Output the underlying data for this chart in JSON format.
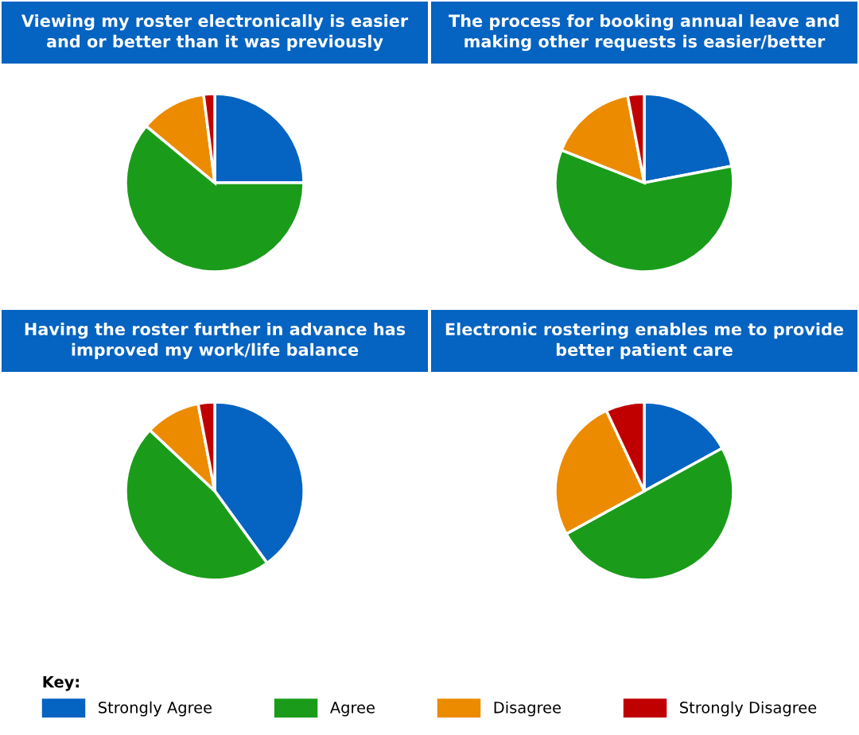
{
  "chart_data": [
    {
      "type": "pie",
      "title": "Viewing my roster electronically is easier\nand or better than it was previously",
      "categories": [
        "Strongly Agree",
        "Agree",
        "Disagree",
        "Strongly Disagree"
      ],
      "values": [
        25,
        61,
        12,
        2
      ],
      "colors": [
        "#0563c1",
        "#1a9c1a",
        "#ec8b00",
        "#c00000"
      ],
      "legend": "bottom",
      "legend_title": "Key:"
    },
    {
      "type": "pie",
      "title": "The process for booking annual leave and\nmaking other requests is easier/better",
      "categories": [
        null,
        null,
        null,
        null
      ],
      "values": [
        22,
        59,
        16,
        3
      ],
      "colors": [
        "#0563c1",
        "#1a9c1a",
        "#ec8b00",
        "#c00000"
      ]
    },
    {
      "type": "pie",
      "title": "Having the roster further in advance has\nimproved my work/life balance",
      "categories": [
        null,
        null,
        null,
        null
      ],
      "values": [
        40,
        47,
        10,
        3
      ],
      "colors": [
        "#0563c1",
        "#1a9c1a",
        "#ec8b00",
        "#c00000"
      ]
    },
    {
      "type": "pie",
      "title": "Electronic rostering enables me to provide\nbetter patient care",
      "categories": [
        null,
        null,
        null,
        null
      ],
      "values": [
        17,
        50,
        26,
        7
      ],
      "colors": [
        "#0563c1",
        "#1a9c1a",
        "#ec8b00",
        "#c00000"
      ]
    }
  ]
}
